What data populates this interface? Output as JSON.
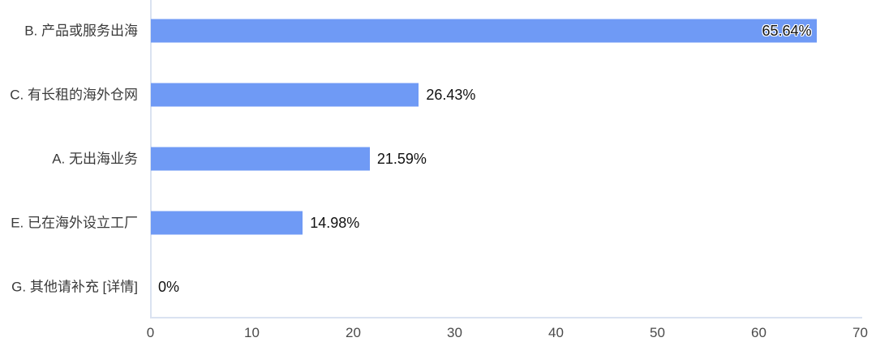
{
  "chart_data": {
    "type": "bar",
    "orientation": "horizontal",
    "categories": [
      "B. 产品或服务出海",
      "C. 有长租的海外仓网",
      "A. 无出海业务",
      "E. 已在海外设立工厂",
      "G. 其他请补充 [详情]"
    ],
    "values": [
      65.64,
      26.43,
      21.59,
      14.98,
      0
    ],
    "value_labels": [
      "65.64%",
      "26.43%",
      "21.59%",
      "14.98%",
      "0%"
    ],
    "value_label_inside": [
      true,
      false,
      false,
      false,
      false
    ],
    "xlabel": "",
    "ylabel": "",
    "xlim": [
      0,
      70
    ],
    "x_ticks": [
      0,
      10,
      20,
      30,
      40,
      50,
      60,
      70
    ],
    "grid": false,
    "legend": "none",
    "bar_color": "#6F9AF5",
    "axis_line_color": "#DAE2F1",
    "category_label_color": "#3A3A3A",
    "tick_label_color": "#4A4A4A",
    "value_label_color": "#111111"
  }
}
